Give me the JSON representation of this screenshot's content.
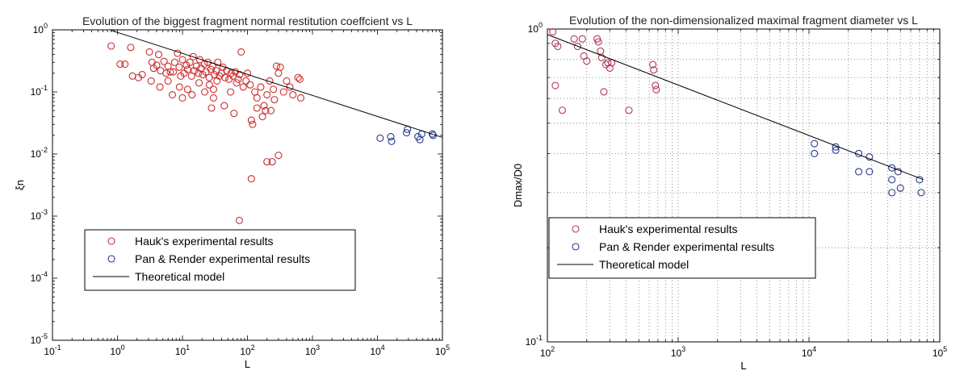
{
  "chart_data": [
    {
      "type": "scatter",
      "title": "Evolution of the biggest fragment normal restitution coeffcient vs L",
      "xlabel": "L",
      "ylabel": "ξn",
      "x_scale": "log",
      "y_scale": "log",
      "xlim": [
        0.1,
        100000
      ],
      "ylim": [
        1e-05,
        1
      ],
      "x_ticks": [
        0.1,
        1,
        10,
        100,
        1000,
        10000,
        100000
      ],
      "x_tick_labels": [
        [
          "10",
          "-1"
        ],
        [
          "10",
          "0"
        ],
        [
          "10",
          "1"
        ],
        [
          "10",
          "2"
        ],
        [
          "10",
          "3"
        ],
        [
          "10",
          "4"
        ],
        [
          "10",
          "5"
        ]
      ],
      "y_ticks": [
        1,
        0.1,
        0.01,
        0.001,
        0.0001,
        1e-05
      ],
      "y_tick_labels": [
        [
          "10",
          "0"
        ],
        [
          "10",
          "-1"
        ],
        [
          "10",
          "-2"
        ],
        [
          "10",
          "-3"
        ],
        [
          "10",
          "-4"
        ],
        [
          "10",
          "-5"
        ]
      ],
      "grid": false,
      "legend_position": "lower-center",
      "series": [
        {
          "name": "Hauk's experimental results",
          "marker": "circle",
          "color": "#cc2b2b",
          "points": [
            [
              0.8,
              0.55
            ],
            [
              1.1,
              0.28
            ],
            [
              1.3,
              0.28
            ],
            [
              1.6,
              0.52
            ],
            [
              1.7,
              0.18
            ],
            [
              2.1,
              0.17
            ],
            [
              2.4,
              0.19
            ],
            [
              3.1,
              0.44
            ],
            [
              3.4,
              0.3
            ],
            [
              3.6,
              0.24
            ],
            [
              4,
              0.27
            ],
            [
              4.3,
              0.4
            ],
            [
              4.6,
              0.22
            ],
            [
              5.2,
              0.31
            ],
            [
              5.6,
              0.2
            ],
            [
              6,
              0.26
            ],
            [
              6.5,
              0.21
            ],
            [
              7.2,
              0.21
            ],
            [
              7.6,
              0.3
            ],
            [
              8.4,
              0.42
            ],
            [
              8.9,
              0.25
            ],
            [
              9.4,
              0.18
            ],
            [
              10,
              0.33
            ],
            [
              10.6,
              0.2
            ],
            [
              11.5,
              0.27
            ],
            [
              12,
              0.23
            ],
            [
              13,
              0.3
            ],
            [
              13.8,
              0.18
            ],
            [
              14.6,
              0.37
            ],
            [
              15.3,
              0.22
            ],
            [
              16.4,
              0.26
            ],
            [
              17.6,
              0.2
            ],
            [
              18.5,
              0.33
            ],
            [
              19.2,
              0.24
            ],
            [
              20.5,
              0.19
            ],
            [
              21.7,
              0.28
            ],
            [
              23,
              0.21
            ],
            [
              24.6,
              0.3
            ],
            [
              25.8,
              0.17
            ],
            [
              27.4,
              0.23
            ],
            [
              29,
              0.26
            ],
            [
              31,
              0.19
            ],
            [
              33,
              0.22
            ],
            [
              35,
              0.3
            ],
            [
              37,
              0.18
            ],
            [
              40,
              0.2
            ],
            [
              42,
              0.25
            ],
            [
              45,
              0.17
            ],
            [
              48,
              0.22
            ],
            [
              52,
              0.16
            ],
            [
              56,
              0.2
            ],
            [
              60,
              0.18
            ],
            [
              65,
              0.21
            ],
            [
              68,
              0.14
            ],
            [
              72,
              0.16
            ],
            [
              76,
              0.19
            ],
            [
              80,
              0.44
            ],
            [
              86,
              0.12
            ],
            [
              95,
              0.15
            ],
            [
              100,
              0.2
            ],
            [
              110,
              0.13
            ],
            [
              115,
              0.035
            ],
            [
              120,
              0.03
            ],
            [
              130,
              0.1
            ],
            [
              140,
              0.08
            ],
            [
              160,
              0.12
            ],
            [
              180,
              0.06
            ],
            [
              200,
              0.09
            ],
            [
              220,
              0.15
            ],
            [
              250,
              0.11
            ],
            [
              280,
              0.26
            ],
            [
              300,
              0.2
            ],
            [
              320,
              0.25
            ],
            [
              360,
              0.1
            ],
            [
              400,
              0.15
            ],
            [
              450,
              0.12
            ],
            [
              500,
              0.09
            ],
            [
              600,
              0.17
            ],
            [
              640,
              0.16
            ],
            [
              660,
              0.08
            ],
            [
              6,
              0.15
            ],
            [
              3.3,
              0.15
            ],
            [
              9,
              0.12
            ],
            [
              12,
              0.11
            ],
            [
              14,
              0.09
            ],
            [
              18,
              0.14
            ],
            [
              22,
              0.1
            ],
            [
              26,
              0.13
            ],
            [
              30,
              0.08
            ],
            [
              34,
              0.15
            ],
            [
              44,
              0.06
            ],
            [
              55,
              0.1
            ],
            [
              62,
              0.045
            ],
            [
              140,
              0.055
            ],
            [
              170,
              0.04
            ],
            [
              190,
              0.05
            ],
            [
              230,
              0.05
            ],
            [
              10,
              0.08
            ],
            [
              28,
              0.055
            ],
            [
              7,
              0.09
            ],
            [
              4.5,
              0.12
            ],
            [
              30,
              0.11
            ],
            [
              260,
              0.075
            ],
            [
              200,
              0.0075
            ],
            [
              240,
              0.0075
            ],
            [
              300,
              0.0095
            ],
            [
              115,
              0.004
            ],
            [
              75,
              0.00085
            ]
          ]
        },
        {
          "name": "Pan & Render experimental results",
          "marker": "circle",
          "color": "#2a3a8c",
          "points": [
            [
              11000,
              0.018
            ],
            [
              16000,
              0.019
            ],
            [
              16500,
              0.016
            ],
            [
              28000,
              0.022
            ],
            [
              29000,
              0.025
            ],
            [
              42000,
              0.019
            ],
            [
              45000,
              0.017
            ],
            [
              48000,
              0.021
            ],
            [
              70000,
              0.021
            ],
            [
              72000,
              0.02
            ]
          ]
        },
        {
          "name": "Theoretical model",
          "type": "line",
          "color": "#000000",
          "points": [
            [
              0.8,
              0.98
            ],
            [
              100000,
              0.0185
            ]
          ]
        }
      ]
    },
    {
      "type": "scatter",
      "title": "Evolution of the non-dimensionalized maximal fragment diameter vs L",
      "xlabel": "L",
      "ylabel": "Dmax/D0",
      "x_scale": "log",
      "y_scale": "log",
      "xlim": [
        100,
        100000
      ],
      "ylim": [
        0.1,
        1
      ],
      "x_ticks": [
        100,
        1000,
        10000,
        100000
      ],
      "x_tick_labels": [
        [
          "10",
          "2"
        ],
        [
          "10",
          "3"
        ],
        [
          "10",
          "4"
        ],
        [
          "10",
          "5"
        ]
      ],
      "y_ticks": [
        1,
        0.1
      ],
      "y_tick_labels": [
        [
          "10",
          "0"
        ],
        [
          "10",
          "-1"
        ]
      ],
      "grid": true,
      "legend_position": "lower-left",
      "series": [
        {
          "name": "Hauk's experimental results",
          "marker": "circle",
          "color": "#b03a55",
          "points": [
            [
              110,
              0.98
            ],
            [
              115,
              0.9
            ],
            [
              120,
              0.88
            ],
            [
              115,
              0.66
            ],
            [
              130,
              0.55
            ],
            [
              160,
              0.93
            ],
            [
              170,
              0.88
            ],
            [
              185,
              0.93
            ],
            [
              190,
              0.82
            ],
            [
              200,
              0.79
            ],
            [
              240,
              0.93
            ],
            [
              245,
              0.91
            ],
            [
              255,
              0.85
            ],
            [
              260,
              0.81
            ],
            [
              270,
              0.63
            ],
            [
              280,
              0.77
            ],
            [
              290,
              0.78
            ],
            [
              300,
              0.75
            ],
            [
              310,
              0.78
            ],
            [
              420,
              0.55
            ],
            [
              640,
              0.77
            ],
            [
              650,
              0.74
            ],
            [
              670,
              0.66
            ],
            [
              680,
              0.64
            ]
          ]
        },
        {
          "name": "Pan & Render experimental results",
          "marker": "circle",
          "color": "#2a3a8c",
          "points": [
            [
              11000,
              0.43
            ],
            [
              11000,
              0.4
            ],
            [
              16000,
              0.42
            ],
            [
              16000,
              0.41
            ],
            [
              24000,
              0.4
            ],
            [
              24000,
              0.35
            ],
            [
              29000,
              0.39
            ],
            [
              29000,
              0.35
            ],
            [
              43000,
              0.36
            ],
            [
              43000,
              0.33
            ],
            [
              43000,
              0.3
            ],
            [
              48000,
              0.35
            ],
            [
              50000,
              0.31
            ],
            [
              70000,
              0.33
            ],
            [
              72000,
              0.3
            ]
          ]
        },
        {
          "name": "Theoretical model",
          "type": "line",
          "color": "#000000",
          "points": [
            [
              100,
              0.96
            ],
            [
              75000,
              0.33
            ]
          ]
        }
      ]
    }
  ]
}
